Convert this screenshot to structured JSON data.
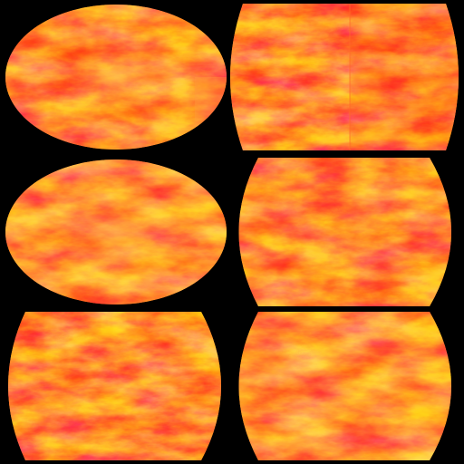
{
  "image": {
    "description_kind": "map-projection-texture-grid",
    "background_color": "#000000",
    "palette": [
      "#ff2a10",
      "#ff5a1e",
      "#ff8a32",
      "#ffb24a",
      "#ffd070"
    ],
    "panels": [
      {
        "id": "aitoff-like-oval-1",
        "shape": "oval"
      },
      {
        "id": "barrel-1",
        "shape": "barrel"
      },
      {
        "id": "aitoff-like-oval-2",
        "shape": "oval"
      },
      {
        "id": "barrel-2",
        "shape": "barrel"
      },
      {
        "id": "barrel-3",
        "shape": "barrel"
      },
      {
        "id": "barrel-4",
        "shape": "barrel"
      }
    ]
  }
}
